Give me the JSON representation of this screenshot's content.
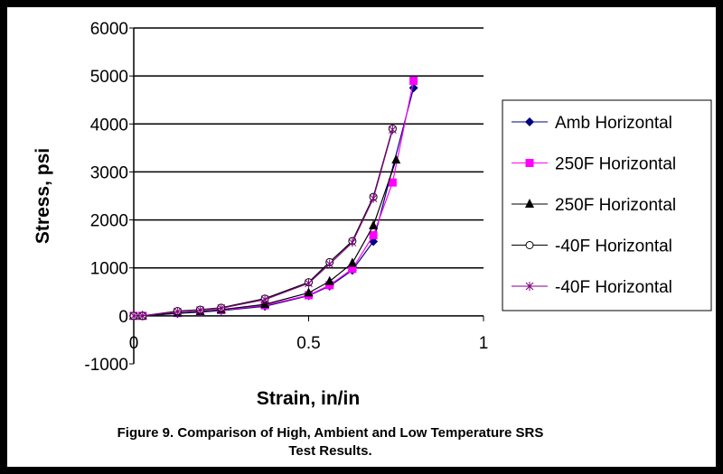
{
  "chart_data": {
    "type": "line",
    "title": "",
    "xlabel": "Strain, in/in",
    "ylabel": "Stress, psi",
    "xlim": [
      0,
      1
    ],
    "ylim": [
      -1000,
      6000
    ],
    "xticks": [
      "0",
      "0.5",
      "1"
    ],
    "yticks": [
      "-1000",
      "0",
      "1000",
      "2000",
      "3000",
      "4000",
      "5000",
      "6000"
    ],
    "grid": "horizontal",
    "legend": "right",
    "series": [
      {
        "name": "Amb Horizontal",
        "color": "#000080",
        "marker": "diamond",
        "x": [
          0,
          0.025,
          0.125,
          0.19,
          0.25,
          0.375,
          0.5,
          0.56,
          0.625,
          0.685,
          0.8
        ],
        "y": [
          0,
          0,
          50,
          80,
          110,
          200,
          420,
          620,
          950,
          1550,
          4750
        ]
      },
      {
        "name": "250F Horizontal",
        "color": "#ff00ff",
        "marker": "square",
        "x": [
          0,
          0.025,
          0.125,
          0.19,
          0.25,
          0.375,
          0.5,
          0.56,
          0.625,
          0.685,
          0.74,
          0.8
        ],
        "y": [
          0,
          0,
          60,
          90,
          120,
          220,
          430,
          640,
          980,
          1680,
          2780,
          4900
        ]
      },
      {
        "name": "250F Horizontal",
        "color": "#000000",
        "marker": "triangle",
        "x": [
          0,
          0.025,
          0.125,
          0.19,
          0.25,
          0.375,
          0.5,
          0.56,
          0.625,
          0.685,
          0.75
        ],
        "y": [
          0,
          0,
          60,
          90,
          130,
          240,
          480,
          720,
          1100,
          1880,
          3250
        ]
      },
      {
        "name": "-40F Horizontal",
        "color": "#000000",
        "marker": "circle",
        "x": [
          0,
          0.025,
          0.125,
          0.19,
          0.25,
          0.375,
          0.5,
          0.56,
          0.625,
          0.685,
          0.74
        ],
        "y": [
          0,
          0,
          100,
          130,
          170,
          360,
          700,
          1120,
          1560,
          2480,
          3900
        ]
      },
      {
        "name": "-40F Horizontal",
        "color": "#800080",
        "marker": "star",
        "x": [
          0,
          0.025,
          0.125,
          0.19,
          0.25,
          0.375,
          0.5,
          0.56,
          0.625,
          0.685,
          0.74
        ],
        "y": [
          0,
          0,
          90,
          120,
          160,
          340,
          680,
          1080,
          1530,
          2450,
          3880
        ]
      }
    ]
  },
  "caption": [
    "Figure 9. Comparison of High, Ambient and Low Temperature SRS",
    "Test Results."
  ]
}
